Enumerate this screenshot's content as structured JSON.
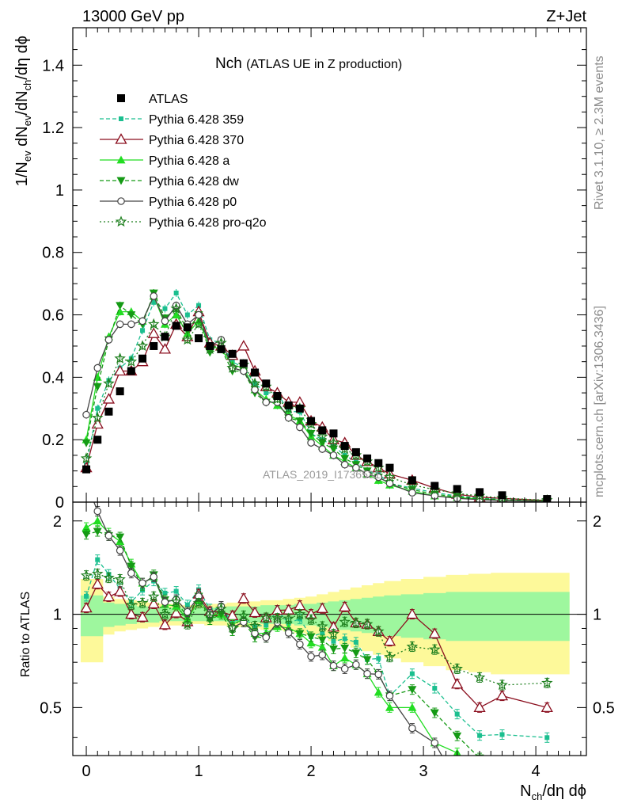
{
  "header": {
    "left": "13000 GeV pp",
    "right": "Z+Jet"
  },
  "side_labels": {
    "rivet": "Rivet 3.1.10, ≥ 2.3M events",
    "mcplots": "mcplots.cern.ch [arXiv:1306.3436]"
  },
  "watermark": "ATLAS_2019_I1736531",
  "colors": {
    "atlas": "#000000",
    "p359": "#1bbf8f",
    "p370": "#8b0f1f",
    "pa": "#22dd22",
    "pdw": "#159a15",
    "pp0": "#444444",
    "pq2o": "#1e7f1e",
    "band_outer": "#fdf99a",
    "band_inner": "#9ef79e"
  },
  "chart_data": {
    "type": "line",
    "title": "Nch",
    "subtitle": "(ATLAS UE in Z production)",
    "xlabel_main": "N",
    "xlabel_sub": "ch",
    "xlabel_rest": "/dη dϕ",
    "ylabel": "1/Nev dNev/dNch/dη dϕ",
    "ylabel_parts": [
      "1/N",
      "ev",
      " dN",
      "ev",
      "/dN",
      "ch",
      "/dη dϕ"
    ],
    "ratio_ylabel": "Ratio to ATLAS",
    "xlim": [
      -0.12,
      4.45
    ],
    "ylim": [
      0,
      1.52
    ],
    "ratio_ylim": [
      0.35,
      2.3
    ],
    "ratio_scale": "log",
    "x_ticks": [
      "0",
      "1",
      "2",
      "3",
      "4"
    ],
    "y_ticks": [
      "0",
      "0.2",
      "0.4",
      "0.6",
      "0.8",
      "1",
      "1.2",
      "1.4"
    ],
    "ratio_ticks": [
      "0.5",
      "1",
      "2"
    ],
    "legend_position": "top-left",
    "x": [
      0.0,
      0.1,
      0.2,
      0.3,
      0.4,
      0.5,
      0.6,
      0.7,
      0.8,
      0.9,
      1.0,
      1.1,
      1.2,
      1.3,
      1.4,
      1.5,
      1.6,
      1.7,
      1.8,
      1.9,
      2.0,
      2.1,
      2.2,
      2.3,
      2.4,
      2.5,
      2.6,
      2.7,
      2.9,
      3.1,
      3.3,
      3.5,
      3.7,
      4.1
    ],
    "series": [
      {
        "name": "ATLAS",
        "key": "atlas",
        "style": "data",
        "values": [
          0.105,
          0.2,
          0.29,
          0.355,
          0.42,
          0.46,
          0.5,
          0.53,
          0.565,
          0.56,
          0.525,
          0.5,
          0.49,
          0.475,
          0.445,
          0.415,
          0.38,
          0.34,
          0.31,
          0.3,
          0.26,
          0.23,
          0.22,
          0.18,
          0.16,
          0.14,
          0.125,
          0.11,
          0.07,
          0.052,
          0.042,
          0.032,
          0.022,
          0.01
        ]
      },
      {
        "name": "Pythia 6.428 359",
        "key": "p359",
        "style": "dashed",
        "marker": "square",
        "values": [
          0.12,
          0.3,
          0.39,
          0.43,
          0.46,
          0.55,
          0.64,
          0.62,
          0.67,
          0.6,
          0.63,
          0.52,
          0.51,
          0.45,
          0.43,
          0.38,
          0.35,
          0.35,
          0.29,
          0.29,
          0.22,
          0.2,
          0.18,
          0.15,
          0.13,
          0.1,
          0.09,
          0.06,
          0.045,
          0.03,
          0.02,
          0.013,
          0.009,
          0.004
        ]
      },
      {
        "name": "Pythia 6.428 370",
        "key": "p370",
        "style": "solid",
        "marker": "triangle-open",
        "values": [
          0.11,
          0.25,
          0.33,
          0.42,
          0.42,
          0.45,
          0.54,
          0.49,
          0.57,
          0.53,
          0.61,
          0.51,
          0.5,
          0.47,
          0.5,
          0.42,
          0.37,
          0.35,
          0.32,
          0.32,
          0.26,
          0.24,
          0.2,
          0.19,
          0.15,
          0.13,
          0.11,
          0.09,
          0.07,
          0.045,
          0.025,
          0.016,
          0.012,
          0.005
        ]
      },
      {
        "name": "Pythia 6.428 a",
        "key": "pa",
        "style": "solid",
        "marker": "triangle",
        "values": [
          0.2,
          0.4,
          0.53,
          0.61,
          0.61,
          0.58,
          0.66,
          0.57,
          0.6,
          0.54,
          0.58,
          0.5,
          0.49,
          0.44,
          0.43,
          0.36,
          0.33,
          0.31,
          0.28,
          0.26,
          0.21,
          0.18,
          0.15,
          0.13,
          0.11,
          0.09,
          0.07,
          0.055,
          0.035,
          0.02,
          0.015,
          0.01,
          0.006,
          0.003
        ]
      },
      {
        "name": "Pythia 6.428 dw",
        "key": "pdw",
        "style": "dashed",
        "marker": "triangle-down",
        "values": [
          0.19,
          0.37,
          0.52,
          0.63,
          0.6,
          0.57,
          0.67,
          0.59,
          0.62,
          0.55,
          0.6,
          0.48,
          0.49,
          0.42,
          0.42,
          0.35,
          0.32,
          0.32,
          0.27,
          0.26,
          0.22,
          0.19,
          0.17,
          0.14,
          0.12,
          0.1,
          0.08,
          0.06,
          0.04,
          0.025,
          0.017,
          0.011,
          0.007,
          0.003
        ]
      },
      {
        "name": "Pythia 6.428 p0",
        "key": "pp0",
        "style": "solid",
        "marker": "circle-open",
        "values": [
          0.28,
          0.43,
          0.52,
          0.57,
          0.57,
          0.58,
          0.66,
          0.58,
          0.63,
          0.57,
          0.6,
          0.5,
          0.52,
          0.43,
          0.42,
          0.36,
          0.32,
          0.32,
          0.27,
          0.24,
          0.19,
          0.17,
          0.15,
          0.12,
          0.11,
          0.09,
          0.08,
          0.06,
          0.03,
          0.02,
          0.012,
          0.008,
          0.005,
          0.002
        ]
      },
      {
        "name": "Pythia 6.428 pro-q2o",
        "key": "pq2o",
        "style": "dotted",
        "marker": "star",
        "values": [
          0.14,
          0.27,
          0.38,
          0.46,
          0.45,
          0.5,
          0.57,
          0.53,
          0.62,
          0.52,
          0.57,
          0.49,
          0.51,
          0.43,
          0.44,
          0.38,
          0.37,
          0.33,
          0.3,
          0.3,
          0.25,
          0.21,
          0.19,
          0.17,
          0.15,
          0.13,
          0.11,
          0.08,
          0.055,
          0.04,
          0.028,
          0.02,
          0.013,
          0.006
        ]
      }
    ],
    "ratio_band_inner": [
      0.15,
      0.15,
      0.09,
      0.08,
      0.07,
      0.06,
      0.06,
      0.05,
      0.05,
      0.05,
      0.05,
      0.05,
      0.05,
      0.06,
      0.06,
      0.06,
      0.07,
      0.07,
      0.07,
      0.08,
      0.08,
      0.09,
      0.1,
      0.11,
      0.12,
      0.13,
      0.14,
      0.15,
      0.16,
      0.17,
      0.18,
      0.18,
      0.18,
      0.18
    ],
    "ratio_band_outer": [
      0.3,
      0.3,
      0.14,
      0.12,
      0.11,
      0.1,
      0.09,
      0.08,
      0.08,
      0.07,
      0.07,
      0.08,
      0.08,
      0.09,
      0.09,
      0.1,
      0.11,
      0.11,
      0.12,
      0.13,
      0.14,
      0.16,
      0.18,
      0.2,
      0.22,
      0.24,
      0.26,
      0.28,
      0.3,
      0.32,
      0.34,
      0.35,
      0.36,
      0.36
    ]
  }
}
